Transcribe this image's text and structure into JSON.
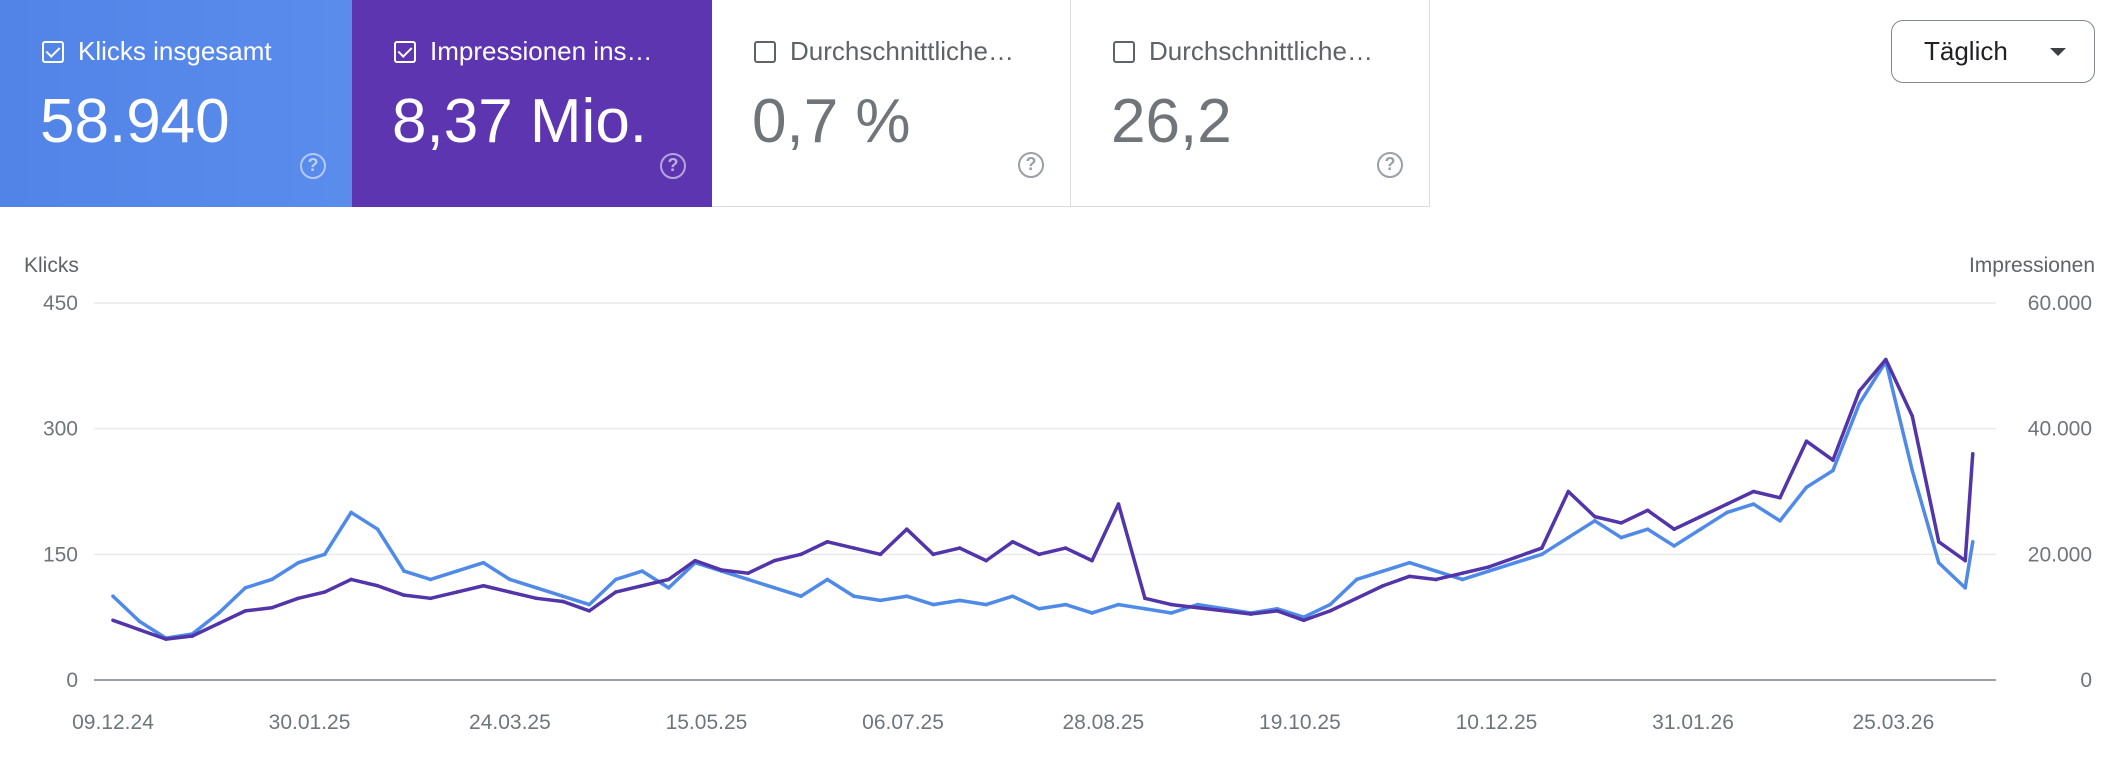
{
  "metrics": [
    {
      "title": "Klicks insgesamt",
      "value": "58.940",
      "checked": true,
      "color": "#5284e8"
    },
    {
      "title": "Impressionen ins…",
      "value": "8,37 Mio.",
      "checked": true,
      "color": "#5e35b1"
    },
    {
      "title": "Durchschnittliche…",
      "value": "0,7 %",
      "checked": false
    },
    {
      "title": "Durchschnittliche…",
      "value": "26,2",
      "checked": false
    }
  ],
  "help_icon": "question-circle-icon",
  "granularity": {
    "label": "Täglich",
    "icon": "caret-down-icon"
  },
  "chart_data": {
    "type": "line",
    "left_axis": {
      "label": "Klicks",
      "ticks": [
        "0",
        "150",
        "300",
        "450"
      ],
      "range": [
        0,
        450
      ]
    },
    "right_axis": {
      "label": "Impressionen",
      "ticks": [
        "0",
        "20.000",
        "40.000",
        "60.000"
      ],
      "range": [
        0,
        60000
      ]
    },
    "x_ticks": [
      "09.12.24",
      "30.01.25",
      "24.03.25",
      "15.05.25",
      "06.07.25",
      "28.08.25",
      "19.10.25",
      "10.12.25",
      "31.01.26",
      "25.03.26"
    ],
    "grid": true,
    "x": [
      "09.12.24",
      "16.12.24",
      "23.12.24",
      "30.12.24",
      "06.01.25",
      "13.01.25",
      "20.01.25",
      "27.01.25",
      "03.02.25",
      "10.02.25",
      "17.02.25",
      "24.02.25",
      "03.03.25",
      "10.03.25",
      "17.03.25",
      "24.03.25",
      "31.03.25",
      "07.04.25",
      "14.04.25",
      "21.04.25",
      "28.04.25",
      "05.05.25",
      "12.05.25",
      "19.05.25",
      "26.05.25",
      "02.06.25",
      "09.06.25",
      "16.06.25",
      "23.06.25",
      "30.06.25",
      "07.07.25",
      "14.07.25",
      "21.07.25",
      "28.07.25",
      "04.08.25",
      "11.08.25",
      "18.08.25",
      "25.08.25",
      "01.09.25",
      "08.09.25",
      "15.09.25",
      "22.09.25",
      "29.09.25",
      "06.10.25",
      "13.10.25",
      "20.10.25",
      "27.10.25",
      "03.11.25",
      "10.11.25",
      "17.11.25",
      "24.11.25",
      "01.12.25",
      "08.12.25",
      "15.12.25",
      "22.12.25",
      "29.12.25",
      "05.01.26",
      "12.01.26",
      "19.01.26",
      "26.01.26",
      "02.02.26",
      "09.02.26",
      "16.02.26",
      "23.02.26",
      "02.03.26",
      "09.03.26",
      "16.03.26",
      "23.03.26",
      "30.03.26",
      "06.04.26",
      "13.04.26",
      "15.04.26"
    ],
    "series": [
      {
        "name": "Klicks",
        "axis": "left",
        "color": "#4f8ae8",
        "values": [
          100,
          70,
          50,
          55,
          80,
          110,
          120,
          140,
          150,
          200,
          180,
          130,
          120,
          130,
          140,
          120,
          110,
          100,
          90,
          120,
          130,
          110,
          140,
          130,
          120,
          110,
          100,
          120,
          100,
          95,
          100,
          90,
          95,
          90,
          100,
          85,
          90,
          80,
          90,
          85,
          80,
          90,
          85,
          80,
          85,
          75,
          90,
          120,
          130,
          140,
          130,
          120,
          130,
          140,
          150,
          170,
          190,
          170,
          180,
          160,
          180,
          200,
          210,
          190,
          230,
          250,
          330,
          380,
          250,
          140,
          110,
          165
        ]
      },
      {
        "name": "Impressionen",
        "axis": "right",
        "color": "#5235a8",
        "values": [
          9500,
          8000,
          6500,
          7000,
          9000,
          11000,
          11500,
          13000,
          14000,
          16000,
          15000,
          13500,
          13000,
          14000,
          15000,
          14000,
          13000,
          12500,
          11000,
          14000,
          15000,
          16000,
          19000,
          17500,
          17000,
          19000,
          20000,
          22000,
          21000,
          20000,
          24000,
          20000,
          21000,
          19000,
          22000,
          20000,
          21000,
          19000,
          28000,
          13000,
          12000,
          11500,
          11000,
          10500,
          11000,
          9500,
          11000,
          13000,
          15000,
          16500,
          16000,
          17000,
          18000,
          19500,
          21000,
          30000,
          26000,
          25000,
          27000,
          24000,
          26000,
          28000,
          30000,
          29000,
          38000,
          35000,
          46000,
          51000,
          42000,
          22000,
          19000,
          36000
        ]
      }
    ]
  }
}
